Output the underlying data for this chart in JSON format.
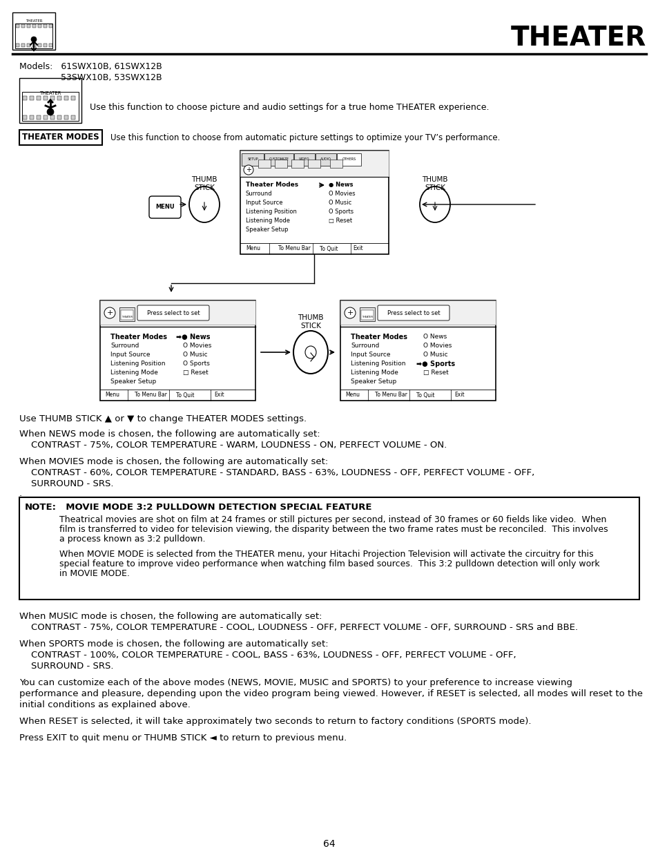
{
  "title": "THEATER",
  "models_line1": "Models:   61SWX10B, 61SWX12B",
  "models_line2": "              53SWX10B, 53SWX12B",
  "intro_text": "Use this function to choose picture and audio settings for a true home THEATER experience.",
  "theater_modes_label": "THEATER MODES",
  "theater_modes_desc": "Use this function to choose from automatic picture settings to optimize your TV’s performance.",
  "use_thumb": "Use THUMB STICK ▲ or ▼ to change THEATER MODES settings.",
  "news_header": "When NEWS mode is chosen, the following are automatically set:",
  "news_body": "    CONTRAST - 75%, COLOR TEMPERATURE - WARM, LOUDNESS - ON, PERFECT VOLUME - ON.",
  "movies_header": "When MOVIES mode is chosen, the following are automatically set:",
  "movies_body1": "    CONTRAST - 60%, COLOR TEMPERATURE - STANDARD, BASS - 63%, LOUDNESS - OFF, PERFECT VOLUME - OFF,",
  "movies_body2": "    SURROUND - SRS.",
  "note_label": "NOTE:",
  "note_title": "  MOVIE MODE 3:2 PULLDOWN DETECTION SPECIAL FEATURE",
  "note_p1a": "Theatrical movies are shot on film at 24 frames or still pictures per second, instead of 30 frames or 60 fields like video.  When",
  "note_p1b": "film is transferred to video for television viewing, the disparity between the two frame rates must be reconciled.  This involves",
  "note_p1c": "a process known as 3:2 pulldown.",
  "note_p2a": "When MOVIE MODE is selected from the THEATER menu, your Hitachi Projection Television will activate the circuitry for this",
  "note_p2b": "special feature to improve video performance when watching film based sources.  This 3:2 pulldown detection will only work",
  "note_p2c": "in MOVIE MODE.",
  "music_header": "When MUSIC mode is chosen, the following are automatically set:",
  "music_body": "    CONTRAST - 75%, COLOR TEMPERATURE - COOL, LOUDNESS - OFF, PERFECT VOLUME - OFF, SURROUND - SRS and BBE.",
  "sports_header": "When SPORTS mode is chosen, the following are automatically set:",
  "sports_body1": "    CONTRAST - 100%, COLOR TEMPERATURE - COOL, BASS - 63%, LOUDNESS - OFF, PERFECT VOLUME - OFF,",
  "sports_body2": "    SURROUND - SRS.",
  "cust_line1": "You can customize each of the above modes (NEWS, MOVIE, MUSIC and SPORTS) to your preference to increase viewing",
  "cust_line2": "performance and pleasure, depending upon the video program being viewed. However, if RESET is selected, all modes will reset to the",
  "cust_line3": "initial conditions as explained above.",
  "reset_text": "When RESET is selected, it will take approximately two seconds to return to factory conditions (SPORTS mode).",
  "exit_text": "Press EXIT to quit menu or THUMB STICK ◄ to return to previous menu.",
  "page_num": "64",
  "bg_color": "#ffffff"
}
